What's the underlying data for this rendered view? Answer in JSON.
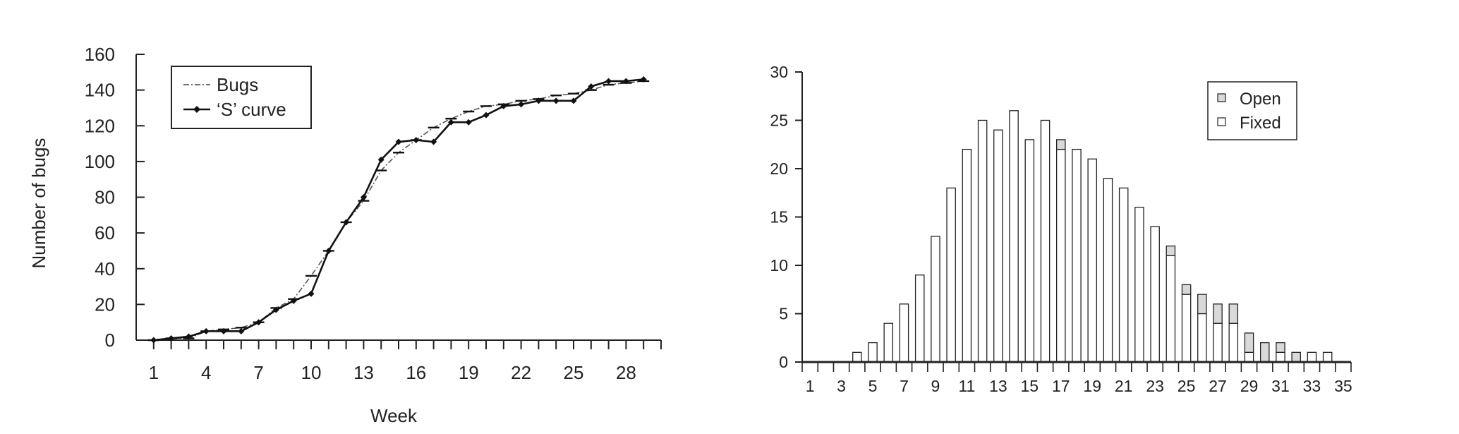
{
  "chart_data": [
    {
      "type": "line",
      "title": "",
      "xlabel": "Week",
      "ylabel": "Number of bugs",
      "xlim": [
        0,
        30
      ],
      "ylim": [
        0,
        160
      ],
      "x_ticks": [
        1,
        2,
        3,
        4,
        5,
        6,
        7,
        8,
        9,
        10,
        11,
        12,
        13,
        14,
        15,
        16,
        17,
        18,
        19,
        20,
        21,
        22,
        23,
        24,
        25,
        26,
        27,
        28,
        29,
        30
      ],
      "x_tick_labels": [
        1,
        4,
        7,
        10,
        13,
        16,
        19,
        22,
        25,
        28
      ],
      "y_ticks": [
        0,
        20,
        40,
        60,
        80,
        100,
        120,
        140,
        160
      ],
      "legend": [
        "Bugs",
        "‘S’ curve"
      ],
      "legend_position": "top-left",
      "x": [
        1,
        2,
        3,
        4,
        5,
        6,
        7,
        8,
        9,
        10,
        11,
        12,
        13,
        14,
        15,
        16,
        17,
        18,
        19,
        20,
        21,
        22,
        23,
        24,
        25,
        26,
        27,
        28,
        29
      ],
      "series": [
        {
          "name": "Bugs",
          "style": "dash-dot with dash markers",
          "values": [
            0,
            1,
            1,
            5,
            6,
            7,
            10,
            18,
            23,
            36,
            50,
            66,
            78,
            95,
            105,
            112,
            119,
            124,
            128,
            131,
            132,
            134,
            135,
            137,
            138,
            140,
            143,
            144,
            145
          ]
        },
        {
          "name": "‘S’ curve",
          "style": "solid with diamond markers",
          "values": [
            0,
            1,
            2,
            5,
            5,
            5,
            10,
            17,
            22,
            26,
            50,
            66,
            80,
            101,
            111,
            112,
            111,
            122,
            122,
            126,
            131,
            132,
            134,
            134,
            134,
            142,
            145,
            145,
            146
          ]
        }
      ]
    },
    {
      "type": "bar",
      "stacked": true,
      "title": "",
      "xlabel": "",
      "ylabel": "",
      "ylim": [
        0,
        30
      ],
      "y_ticks": [
        0,
        5,
        10,
        15,
        20,
        25,
        30
      ],
      "categories": [
        1,
        2,
        3,
        4,
        5,
        6,
        7,
        8,
        9,
        10,
        11,
        12,
        13,
        14,
        15,
        16,
        17,
        18,
        19,
        20,
        21,
        22,
        23,
        24,
        25,
        26,
        27,
        28,
        29,
        30,
        31,
        32,
        33,
        34,
        35
      ],
      "x_tick_labels": [
        1,
        3,
        5,
        7,
        9,
        11,
        13,
        15,
        17,
        19,
        21,
        23,
        25,
        27,
        29,
        31,
        33,
        35
      ],
      "legend": [
        "Open",
        "Fixed"
      ],
      "legend_position": "top-right",
      "series": [
        {
          "name": "Fixed",
          "color": "#ffffff",
          "values": [
            0,
            0,
            0,
            1,
            2,
            4,
            6,
            9,
            13,
            18,
            22,
            25,
            24,
            26,
            23,
            25,
            22,
            22,
            21,
            19,
            18,
            16,
            14,
            11,
            7,
            5,
            4,
            4,
            1,
            0,
            1,
            0,
            1,
            1,
            0
          ]
        },
        {
          "name": "Open",
          "color": "#d9d9d9",
          "values": [
            0,
            0,
            0,
            0,
            0,
            0,
            0,
            0,
            0,
            0,
            0,
            0,
            0,
            0,
            0,
            0,
            1,
            0,
            0,
            0,
            0,
            0,
            0,
            1,
            1,
            2,
            2,
            2,
            2,
            2,
            1,
            1,
            0,
            0,
            0
          ]
        }
      ]
    }
  ]
}
